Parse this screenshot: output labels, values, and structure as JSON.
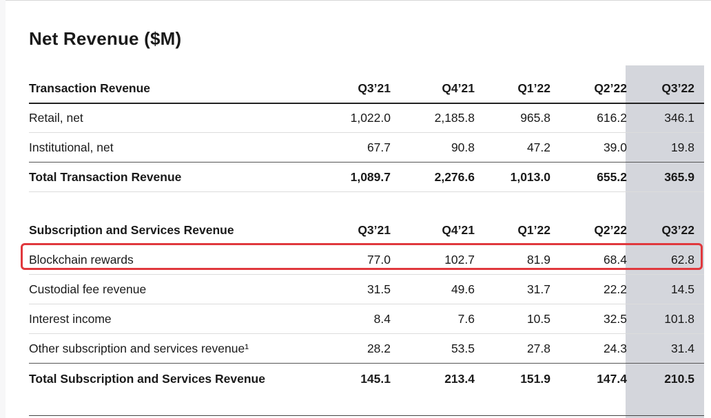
{
  "title": "Net Revenue ($M)",
  "section1": {
    "header": "Transaction Revenue",
    "columns": [
      "Q3’21",
      "Q4’21",
      "Q1’22",
      "Q2’22",
      "Q3’22"
    ],
    "rows": [
      {
        "label": "Retail, net",
        "values": [
          "1,022.0",
          "2,185.8",
          "965.8",
          "616.2",
          "346.1"
        ]
      },
      {
        "label": "Institutional, net",
        "values": [
          "67.7",
          "90.8",
          "47.2",
          "39.0",
          "19.8"
        ]
      }
    ],
    "total": {
      "label": "Total Transaction Revenue",
      "values": [
        "1,089.7",
        "2,276.6",
        "1,013.0",
        "655.2",
        "365.9"
      ]
    }
  },
  "section2": {
    "header": "Subscription and Services Revenue",
    "columns": [
      "Q3’21",
      "Q4’21",
      "Q1’22",
      "Q2’22",
      "Q3’22"
    ],
    "rows": [
      {
        "label": "Blockchain rewards",
        "values": [
          "77.0",
          "102.7",
          "81.9",
          "68.4",
          "62.8"
        ]
      },
      {
        "label": "Custodial fee revenue",
        "values": [
          "31.5",
          "49.6",
          "31.7",
          "22.2",
          "14.5"
        ]
      },
      {
        "label": "Interest income",
        "values": [
          "8.4",
          "7.6",
          "10.5",
          "32.5",
          "101.8"
        ]
      },
      {
        "label": "Other subscription and services revenue¹",
        "values": [
          "28.2",
          "53.5",
          "27.8",
          "24.3",
          "31.4"
        ]
      }
    ],
    "total": {
      "label": "Total Subscription and Services Revenue",
      "values": [
        "145.1",
        "213.4",
        "151.9",
        "147.4",
        "210.5"
      ]
    }
  },
  "colors": {
    "highlight_column": "#d4d6dc",
    "highlight_box": "#e0383d"
  }
}
